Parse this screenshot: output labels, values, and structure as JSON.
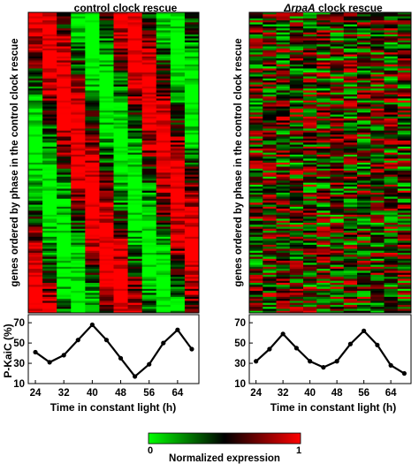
{
  "panels": [
    {
      "title": "control clock rescue",
      "title_italic": "",
      "title_rest": "",
      "ylabel": "genes ordered by phase in the control clock rescue"
    },
    {
      "title": "",
      "title_italic": "ΔrpaA",
      "title_rest": " clock rescue",
      "ylabel": "genes ordered by phase in the control clock rescue"
    }
  ],
  "line_ylabel": "P-KaiC (%)",
  "xlabel": "Time in constant light (h)",
  "colorbar": {
    "label": "Normalized expression",
    "min_label": "0",
    "max_label": "1",
    "colors": [
      "#00ff00",
      "#000000",
      "#ff0000"
    ]
  },
  "chart_data": [
    {
      "type": "heatmap",
      "title": "control clock rescue",
      "columns": [
        "24",
        "28",
        "32",
        "36",
        "40",
        "44",
        "48",
        "52",
        "56",
        "60",
        "64",
        "68"
      ],
      "rows_description_visible": "genes ordered by phase in the control clock rescue",
      "pattern": "phase-ordered",
      "value_range": [
        0,
        1
      ]
    },
    {
      "type": "line",
      "title": "control clock rescue",
      "xlabel": "Time in constant light (h)",
      "ylabel": "P-KaiC (%)",
      "x": [
        24,
        28,
        32,
        36,
        40,
        44,
        48,
        52,
        56,
        60,
        64,
        68
      ],
      "y": [
        41,
        31,
        38,
        53,
        68,
        53,
        35,
        17,
        29,
        50,
        63,
        44
      ],
      "xticks": [
        24,
        32,
        40,
        48,
        56,
        64
      ],
      "yticks": [
        10,
        30,
        50,
        70
      ],
      "xlim": [
        22,
        70
      ],
      "ylim": [
        10,
        78
      ]
    },
    {
      "type": "heatmap",
      "title": "ΔrpaA clock rescue",
      "columns": [
        "24",
        "28",
        "32",
        "36",
        "40",
        "44",
        "48",
        "52",
        "56",
        "60",
        "64",
        "68"
      ],
      "rows_description_visible": "genes ordered by phase in the control clock rescue",
      "pattern": "noisy",
      "value_range": [
        0,
        1
      ]
    },
    {
      "type": "line",
      "title": "ΔrpaA clock rescue",
      "xlabel": "Time in constant light (h)",
      "ylabel": "",
      "x": [
        24,
        28,
        32,
        36,
        40,
        44,
        48,
        52,
        56,
        60,
        64,
        68
      ],
      "y": [
        32,
        44,
        59,
        45,
        32,
        26,
        32,
        49,
        62,
        48,
        28,
        20
      ],
      "xticks": [
        24,
        32,
        40,
        48,
        56,
        64
      ],
      "yticks": [
        10,
        30,
        50,
        70
      ],
      "xlim": [
        22,
        70
      ],
      "ylim": [
        10,
        78
      ]
    }
  ]
}
